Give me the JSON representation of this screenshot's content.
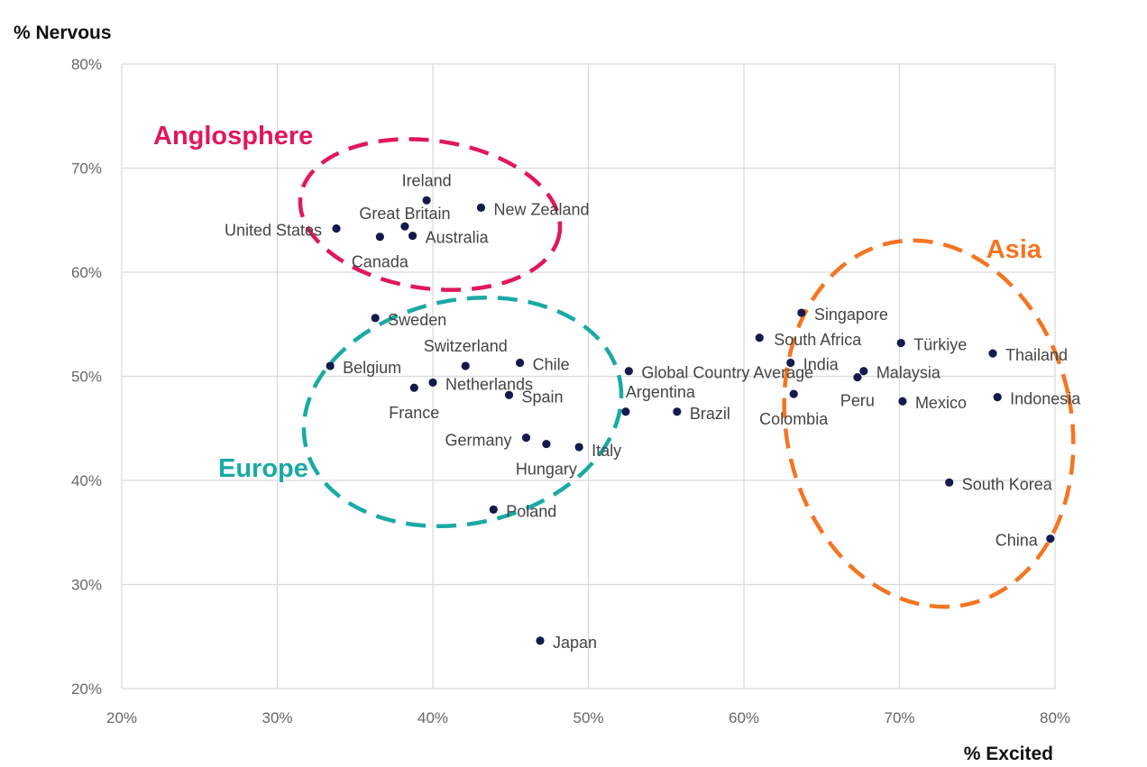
{
  "chart_data": {
    "type": "scatter",
    "title": "",
    "xlabel": "% Excited",
    "ylabel": "% Nervous",
    "xlim": [
      20,
      80
    ],
    "ylim": [
      20,
      80
    ],
    "x_ticks": [
      "20%",
      "30%",
      "40%",
      "50%",
      "60%",
      "70%",
      "80%"
    ],
    "y_ticks": [
      "20%",
      "30%",
      "40%",
      "50%",
      "60%",
      "70%",
      "80%"
    ],
    "grid": true,
    "point_color": "#141a4e",
    "points": [
      {
        "label": "Ireland",
        "x": 39.6,
        "y": 66.9
      },
      {
        "label": "New Zealand",
        "x": 43.1,
        "y": 66.2
      },
      {
        "label": "Great Britain",
        "x": 38.2,
        "y": 64.4
      },
      {
        "label": "United States",
        "x": 33.8,
        "y": 64.2
      },
      {
        "label": "Canada",
        "x": 36.6,
        "y": 63.4
      },
      {
        "label": "Australia",
        "x": 38.7,
        "y": 63.5
      },
      {
        "label": "Sweden",
        "x": 36.3,
        "y": 55.6
      },
      {
        "label": "Belgium",
        "x": 33.4,
        "y": 51.0
      },
      {
        "label": "Switzerland",
        "x": 42.1,
        "y": 51.0
      },
      {
        "label": "Chile",
        "x": 45.6,
        "y": 51.3
      },
      {
        "label": "Netherlands",
        "x": 40.0,
        "y": 49.4
      },
      {
        "label": "France",
        "x": 38.8,
        "y": 48.9
      },
      {
        "label": "Spain",
        "x": 44.9,
        "y": 48.2
      },
      {
        "label": "Germany",
        "x": 46.0,
        "y": 44.1
      },
      {
        "label": "Hungary",
        "x": 47.3,
        "y": 43.5
      },
      {
        "label": "Italy",
        "x": 49.4,
        "y": 43.2
      },
      {
        "label": "Argentina",
        "x": 52.4,
        "y": 46.6
      },
      {
        "label": "Poland",
        "x": 43.9,
        "y": 37.2
      },
      {
        "label": "Japan",
        "x": 46.9,
        "y": 24.6
      },
      {
        "label": "Global Country Average",
        "x": 52.6,
        "y": 50.5
      },
      {
        "label": "Brazil",
        "x": 55.7,
        "y": 46.6
      },
      {
        "label": "South Africa",
        "x": 61.0,
        "y": 53.7
      },
      {
        "label": "Singapore",
        "x": 63.7,
        "y": 56.1
      },
      {
        "label": "India",
        "x": 63.0,
        "y": 51.3
      },
      {
        "label": "Colombia",
        "x": 63.2,
        "y": 48.3
      },
      {
        "label": "Malaysia",
        "x": 67.7,
        "y": 50.5
      },
      {
        "label": "Peru",
        "x": 67.3,
        "y": 49.9
      },
      {
        "label": "Türkiye",
        "x": 70.1,
        "y": 53.2
      },
      {
        "label": "Mexico",
        "x": 70.2,
        "y": 47.6
      },
      {
        "label": "Thailand",
        "x": 76.0,
        "y": 52.2
      },
      {
        "label": "Indonesia",
        "x": 76.3,
        "y": 48.0
      },
      {
        "label": "South Korea",
        "x": 73.2,
        "y": 39.8
      },
      {
        "label": "China",
        "x": 79.7,
        "y": 34.4
      }
    ],
    "groups": [
      {
        "label": "Anglosphere",
        "color": "#e0185a"
      },
      {
        "label": "Europe",
        "color": "#1aaaa5"
      },
      {
        "label": "Asia",
        "color": "#f47521"
      }
    ]
  }
}
